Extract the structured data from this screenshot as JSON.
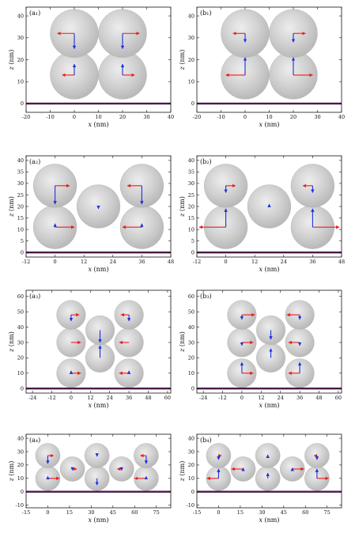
{
  "figure": {
    "background": "#ffffff",
    "sphere_fill": "#c8c8c8",
    "sphere_edge": "#b0b0b0",
    "substrate_color": "#4b1a4a",
    "arrow_red": "#ee1c1c",
    "arrow_blue": "#1c2fe0"
  },
  "chart_data": [
    {
      "type": "scatter",
      "panel_label": "(a₁)",
      "xlabel_var": "x",
      "xlabel_unit": " (nm)",
      "ylabel_var": "z",
      "ylabel_unit": " (nm)",
      "xlim": [
        -20,
        40
      ],
      "ylim": [
        -4,
        44
      ],
      "xticks": [
        -20,
        -10,
        0,
        10,
        20,
        30,
        40
      ],
      "yticks": [
        0,
        10,
        20,
        30,
        40
      ],
      "sphere_radius": 10,
      "spheres": [
        [
          0,
          13
        ],
        [
          20,
          13
        ],
        [
          0,
          32
        ],
        [
          20,
          32
        ]
      ],
      "arrows": [
        {
          "x": 0,
          "z": 32,
          "dx": -1,
          "dz": 0,
          "len": 7,
          "color": "red"
        },
        {
          "x": 0,
          "z": 32,
          "dx": 0,
          "dz": -1,
          "len": 7,
          "color": "blue"
        },
        {
          "x": 20,
          "z": 32,
          "dx": 1,
          "dz": 0,
          "len": 7,
          "color": "red"
        },
        {
          "x": 20,
          "z": 32,
          "dx": 0,
          "dz": -1,
          "len": 7,
          "color": "blue"
        },
        {
          "x": 0,
          "z": 13,
          "dx": -1,
          "dz": 0,
          "len": 5,
          "color": "red"
        },
        {
          "x": 0,
          "z": 13,
          "dx": 0,
          "dz": 1,
          "len": 5,
          "color": "blue"
        },
        {
          "x": 20,
          "z": 13,
          "dx": 1,
          "dz": 0,
          "len": 5,
          "color": "red"
        },
        {
          "x": 20,
          "z": 13,
          "dx": 0,
          "dz": 1,
          "len": 5,
          "color": "blue"
        }
      ]
    },
    {
      "type": "scatter",
      "panel_label": "(b₁)",
      "xlabel_var": "x",
      "xlabel_unit": " (nm)",
      "ylabel_var": "z",
      "ylabel_unit": " (nm)",
      "xlim": [
        -20,
        40
      ],
      "ylim": [
        -4,
        44
      ],
      "xticks": [
        -20,
        -10,
        0,
        10,
        20,
        30,
        40
      ],
      "yticks": [
        0,
        10,
        20,
        30,
        40
      ],
      "sphere_radius": 10,
      "spheres": [
        [
          0,
          13
        ],
        [
          20,
          13
        ],
        [
          0,
          32
        ],
        [
          20,
          32
        ]
      ],
      "arrows": [
        {
          "x": 0,
          "z": 32,
          "dx": -1,
          "dz": 0,
          "len": 5,
          "color": "red"
        },
        {
          "x": 0,
          "z": 32,
          "dx": 0,
          "dz": -1,
          "len": 4,
          "color": "blue"
        },
        {
          "x": 20,
          "z": 32,
          "dx": 1,
          "dz": 0,
          "len": 5,
          "color": "red"
        },
        {
          "x": 20,
          "z": 32,
          "dx": 0,
          "dz": -1,
          "len": 4,
          "color": "blue"
        },
        {
          "x": 0,
          "z": 13,
          "dx": -1,
          "dz": 0,
          "len": 8,
          "color": "red"
        },
        {
          "x": 0,
          "z": 13,
          "dx": 0,
          "dz": 1,
          "len": 8,
          "color": "blue"
        },
        {
          "x": 20,
          "z": 13,
          "dx": 1,
          "dz": 0,
          "len": 8,
          "color": "red"
        },
        {
          "x": 20,
          "z": 13,
          "dx": 0,
          "dz": 1,
          "len": 8,
          "color": "blue"
        }
      ]
    },
    {
      "type": "scatter",
      "panel_label": "(a₂)",
      "xlabel_var": "x",
      "xlabel_unit": " (nm)",
      "ylabel_var": "z",
      "ylabel_unit": " (nm)",
      "xlim": [
        -12,
        48
      ],
      "ylim": [
        -2,
        42
      ],
      "xticks": [
        -12,
        0,
        12,
        24,
        36,
        48
      ],
      "yticks": [
        0,
        5,
        10,
        15,
        20,
        25,
        30,
        35,
        40
      ],
      "sphere_radius": 9,
      "spheres": [
        [
          0,
          11
        ],
        [
          36,
          11
        ],
        [
          0,
          29
        ],
        [
          36,
          29
        ],
        [
          18,
          20
        ]
      ],
      "arrows": [
        {
          "x": 0,
          "z": 29,
          "dx": 1,
          "dz": 0,
          "len": 6,
          "color": "red"
        },
        {
          "x": 0,
          "z": 29,
          "dx": 0,
          "dz": -1,
          "len": 8,
          "color": "blue"
        },
        {
          "x": 36,
          "z": 29,
          "dx": -1,
          "dz": 0,
          "len": 6,
          "color": "red"
        },
        {
          "x": 36,
          "z": 29,
          "dx": 0,
          "dz": -1,
          "len": 8,
          "color": "blue"
        },
        {
          "x": 0,
          "z": 11,
          "dx": 1,
          "dz": 0,
          "len": 8,
          "color": "red"
        },
        {
          "x": 0,
          "z": 11,
          "dx": 0,
          "dz": 1,
          "len": 1.5,
          "color": "blue"
        },
        {
          "x": 36,
          "z": 11,
          "dx": -1,
          "dz": 0,
          "len": 8,
          "color": "red"
        },
        {
          "x": 36,
          "z": 11,
          "dx": 0,
          "dz": 1,
          "len": 1.5,
          "color": "blue"
        },
        {
          "x": 18,
          "z": 20,
          "dx": 0,
          "dz": -1,
          "len": 1,
          "color": "blue"
        }
      ]
    },
    {
      "type": "scatter",
      "panel_label": "(b₂)",
      "xlabel_var": "x",
      "xlabel_unit": " (nm)",
      "ylabel_var": "z",
      "ylabel_unit": " (nm)",
      "xlim": [
        -12,
        48
      ],
      "ylim": [
        -2,
        42
      ],
      "xticks": [
        -12,
        0,
        12,
        24,
        36,
        48
      ],
      "yticks": [
        0,
        5,
        10,
        15,
        20,
        25,
        30,
        35,
        40
      ],
      "sphere_radius": 9,
      "spheres": [
        [
          0,
          11
        ],
        [
          36,
          11
        ],
        [
          0,
          29
        ],
        [
          36,
          29
        ],
        [
          18,
          20
        ]
      ],
      "arrows": [
        {
          "x": 0,
          "z": 29,
          "dx": 1,
          "dz": 0,
          "len": 4,
          "color": "red"
        },
        {
          "x": 0,
          "z": 29,
          "dx": 0,
          "dz": -1,
          "len": 3,
          "color": "blue"
        },
        {
          "x": 36,
          "z": 29,
          "dx": -1,
          "dz": 0,
          "len": 4,
          "color": "red"
        },
        {
          "x": 36,
          "z": 29,
          "dx": 0,
          "dz": -1,
          "len": 3,
          "color": "blue"
        },
        {
          "x": 0,
          "z": 11,
          "dx": -1,
          "dz": 0,
          "len": 11,
          "color": "red"
        },
        {
          "x": 0,
          "z": 11,
          "dx": 0,
          "dz": 1,
          "len": 8,
          "color": "blue"
        },
        {
          "x": 36,
          "z": 11,
          "dx": 1,
          "dz": 0,
          "len": 11,
          "color": "red"
        },
        {
          "x": 36,
          "z": 11,
          "dx": 0,
          "dz": 1,
          "len": 8,
          "color": "blue"
        },
        {
          "x": 18,
          "z": 20,
          "dx": 0,
          "dz": 1,
          "len": 1,
          "color": "blue"
        }
      ]
    },
    {
      "type": "scatter",
      "panel_label": "(a₃)",
      "xlabel_var": "x",
      "xlabel_unit": " (nm)",
      "ylabel_var": "z",
      "ylabel_unit": " (nm)",
      "xlim": [
        -28,
        62
      ],
      "ylim": [
        -3,
        64
      ],
      "xticks": [
        -24,
        -12,
        0,
        12,
        24,
        36,
        48,
        60
      ],
      "yticks": [
        0,
        10,
        20,
        30,
        40,
        50,
        60
      ],
      "sphere_radius": 9,
      "spheres": [
        [
          0,
          10
        ],
        [
          36,
          10
        ],
        [
          0,
          30
        ],
        [
          36,
          30
        ],
        [
          0,
          48
        ],
        [
          36,
          48
        ],
        [
          18,
          20
        ],
        [
          18,
          38
        ]
      ],
      "arrows": [
        {
          "x": 0,
          "z": 48,
          "dx": 1,
          "dz": 0,
          "len": 5,
          "color": "red"
        },
        {
          "x": 0,
          "z": 48,
          "dx": 0,
          "dz": -1,
          "len": 4,
          "color": "blue"
        },
        {
          "x": 36,
          "z": 48,
          "dx": -1,
          "dz": 0,
          "len": 5,
          "color": "red"
        },
        {
          "x": 36,
          "z": 48,
          "dx": 0,
          "dz": -1,
          "len": 4,
          "color": "blue"
        },
        {
          "x": 0,
          "z": 30,
          "dx": 1,
          "dz": 0,
          "len": 6,
          "color": "red"
        },
        {
          "x": 36,
          "z": 30,
          "dx": -1,
          "dz": 0,
          "len": 6,
          "color": "red"
        },
        {
          "x": 0,
          "z": 10,
          "dx": 1,
          "dz": 0,
          "len": 6,
          "color": "red"
        },
        {
          "x": 0,
          "z": 10,
          "dx": 0,
          "dz": 1,
          "len": 1.5,
          "color": "blue"
        },
        {
          "x": 36,
          "z": 10,
          "dx": -1,
          "dz": 0,
          "len": 6,
          "color": "red"
        },
        {
          "x": 36,
          "z": 10,
          "dx": 0,
          "dz": 1,
          "len": 1.5,
          "color": "blue"
        },
        {
          "x": 18,
          "z": 38,
          "dx": 0,
          "dz": -1,
          "len": 8,
          "color": "blue"
        },
        {
          "x": 18,
          "z": 20,
          "dx": 0,
          "dz": 1,
          "len": 8,
          "color": "blue"
        }
      ]
    },
    {
      "type": "scatter",
      "panel_label": "(b₃)",
      "xlabel_var": "x",
      "xlabel_unit": " (nm)",
      "ylabel_var": "z",
      "ylabel_unit": " (nm)",
      "xlim": [
        -28,
        62
      ],
      "ylim": [
        -3,
        64
      ],
      "xticks": [
        -24,
        -12,
        0,
        12,
        24,
        36,
        48,
        60
      ],
      "yticks": [
        0,
        10,
        20,
        30,
        40,
        50,
        60
      ],
      "sphere_radius": 9,
      "spheres": [
        [
          0,
          10
        ],
        [
          36,
          10
        ],
        [
          0,
          30
        ],
        [
          36,
          30
        ],
        [
          0,
          48
        ],
        [
          36,
          48
        ],
        [
          18,
          20
        ],
        [
          18,
          38
        ]
      ],
      "arrows": [
        {
          "x": 0,
          "z": 48,
          "dx": 1,
          "dz": 0,
          "len": 8,
          "color": "red"
        },
        {
          "x": 0,
          "z": 48,
          "dx": 0,
          "dz": -1,
          "len": 3,
          "color": "blue"
        },
        {
          "x": 36,
          "z": 48,
          "dx": -1,
          "dz": 0,
          "len": 8,
          "color": "red"
        },
        {
          "x": 36,
          "z": 48,
          "dx": 0,
          "dz": -1,
          "len": 3,
          "color": "blue"
        },
        {
          "x": 0,
          "z": 30,
          "dx": 1,
          "dz": 0,
          "len": 7,
          "color": "red"
        },
        {
          "x": 0,
          "z": 30,
          "dx": 0,
          "dz": -1,
          "len": 2,
          "color": "blue"
        },
        {
          "x": 36,
          "z": 30,
          "dx": -1,
          "dz": 0,
          "len": 7,
          "color": "red"
        },
        {
          "x": 36,
          "z": 30,
          "dx": 0,
          "dz": -1,
          "len": 2,
          "color": "blue"
        },
        {
          "x": 0,
          "z": 10,
          "dx": 1,
          "dz": 0,
          "len": 7,
          "color": "red"
        },
        {
          "x": 0,
          "z": 10,
          "dx": 0,
          "dz": 1,
          "len": 7,
          "color": "blue"
        },
        {
          "x": 36,
          "z": 10,
          "dx": -1,
          "dz": 0,
          "len": 7,
          "color": "red"
        },
        {
          "x": 36,
          "z": 10,
          "dx": 0,
          "dz": 1,
          "len": 7,
          "color": "blue"
        },
        {
          "x": 18,
          "z": 38,
          "dx": 0,
          "dz": -1,
          "len": 6,
          "color": "blue"
        },
        {
          "x": 18,
          "z": 20,
          "dx": 0,
          "dz": 1,
          "len": 6,
          "color": "blue"
        }
      ]
    },
    {
      "type": "scatter",
      "panel_label": "(a₄)",
      "xlabel_var": "x",
      "xlabel_unit": " (nm)",
      "ylabel_var": "z",
      "ylabel_unit": " (nm)",
      "xlim": [
        -15,
        85
      ],
      "ylim": [
        -12,
        43
      ],
      "xticks": [
        -15,
        0,
        15,
        30,
        45,
        60,
        75
      ],
      "yticks": [
        -10,
        0,
        10,
        20,
        30,
        40
      ],
      "sphere_radius": 8.5,
      "spheres": [
        [
          0,
          10
        ],
        [
          0,
          27
        ],
        [
          68,
          10
        ],
        [
          68,
          27
        ],
        [
          17,
          17
        ],
        [
          51,
          17
        ],
        [
          34,
          10
        ],
        [
          34,
          27
        ]
      ],
      "arrows": [
        {
          "x": 0,
          "z": 27,
          "dx": 1,
          "dz": 0,
          "len": 4,
          "color": "red"
        },
        {
          "x": 0,
          "z": 27,
          "dx": 0,
          "dz": -1,
          "len": 6,
          "color": "blue"
        },
        {
          "x": 68,
          "z": 27,
          "dx": -1,
          "dz": 0,
          "len": 4,
          "color": "red"
        },
        {
          "x": 68,
          "z": 27,
          "dx": 0,
          "dz": -1,
          "len": 6,
          "color": "blue"
        },
        {
          "x": 0,
          "z": 10,
          "dx": 1,
          "dz": 0,
          "len": 8,
          "color": "red"
        },
        {
          "x": 0,
          "z": 10,
          "dx": 0,
          "dz": 1,
          "len": 1.5,
          "color": "blue"
        },
        {
          "x": 68,
          "z": 10,
          "dx": -1,
          "dz": 0,
          "len": 8,
          "color": "red"
        },
        {
          "x": 68,
          "z": 10,
          "dx": 0,
          "dz": 1,
          "len": 1.5,
          "color": "blue"
        },
        {
          "x": 17,
          "z": 17,
          "dx": 1,
          "dz": 0,
          "len": 3,
          "color": "red"
        },
        {
          "x": 17,
          "z": 17,
          "dx": 0,
          "dz": -1,
          "len": 1,
          "color": "blue"
        },
        {
          "x": 51,
          "z": 17,
          "dx": -1,
          "dz": 0,
          "len": 3,
          "color": "red"
        },
        {
          "x": 51,
          "z": 17,
          "dx": 0,
          "dz": -1,
          "len": 1,
          "color": "blue"
        },
        {
          "x": 34,
          "z": 10,
          "dx": 0,
          "dz": -1,
          "len": 5,
          "color": "blue"
        },
        {
          "x": 34,
          "z": 27,
          "dx": 0,
          "dz": -1,
          "len": 0.6,
          "color": "blue"
        }
      ]
    },
    {
      "type": "scatter",
      "panel_label": "(b₄)",
      "xlabel_var": "x",
      "xlabel_unit": " (nm)",
      "ylabel_var": "z",
      "ylabel_unit": " (nm)",
      "xlim": [
        -15,
        85
      ],
      "ylim": [
        -12,
        43
      ],
      "xticks": [
        -15,
        0,
        15,
        30,
        45,
        60,
        75
      ],
      "yticks": [
        -10,
        0,
        10,
        20,
        30,
        40
      ],
      "sphere_radius": 8.5,
      "spheres": [
        [
          0,
          10
        ],
        [
          0,
          27
        ],
        [
          68,
          10
        ],
        [
          68,
          27
        ],
        [
          17,
          17
        ],
        [
          51,
          17
        ],
        [
          34,
          10
        ],
        [
          34,
          27
        ]
      ],
      "arrows": [
        {
          "x": 0,
          "z": 27,
          "dx": 1,
          "dz": 0,
          "len": 2,
          "color": "red"
        },
        {
          "x": 0,
          "z": 27,
          "dx": 0,
          "dz": -1,
          "len": 3,
          "color": "blue"
        },
        {
          "x": 68,
          "z": 27,
          "dx": -1,
          "dz": 0,
          "len": 2,
          "color": "red"
        },
        {
          "x": 68,
          "z": 27,
          "dx": 0,
          "dz": -1,
          "len": 3,
          "color": "blue"
        },
        {
          "x": 0,
          "z": 10,
          "dx": -1,
          "dz": 0,
          "len": 8,
          "color": "red"
        },
        {
          "x": 0,
          "z": 10,
          "dx": 0,
          "dz": 1,
          "len": 7,
          "color": "blue"
        },
        {
          "x": 68,
          "z": 10,
          "dx": 1,
          "dz": 0,
          "len": 8,
          "color": "red"
        },
        {
          "x": 68,
          "z": 10,
          "dx": 0,
          "dz": 1,
          "len": 7,
          "color": "blue"
        },
        {
          "x": 17,
          "z": 17,
          "dx": -1,
          "dz": 0,
          "len": 8,
          "color": "red"
        },
        {
          "x": 17,
          "z": 17,
          "dx": 0,
          "dz": 1,
          "len": 0.8,
          "color": "blue"
        },
        {
          "x": 51,
          "z": 17,
          "dx": 1,
          "dz": 0,
          "len": 8,
          "color": "red"
        },
        {
          "x": 51,
          "z": 17,
          "dx": 0,
          "dz": 1,
          "len": 0.8,
          "color": "blue"
        },
        {
          "x": 34,
          "z": 10,
          "dx": 0,
          "dz": 1,
          "len": 4,
          "color": "blue"
        },
        {
          "x": 34,
          "z": 27,
          "dx": 0,
          "dz": 1,
          "len": 0.6,
          "color": "blue"
        }
      ]
    }
  ]
}
